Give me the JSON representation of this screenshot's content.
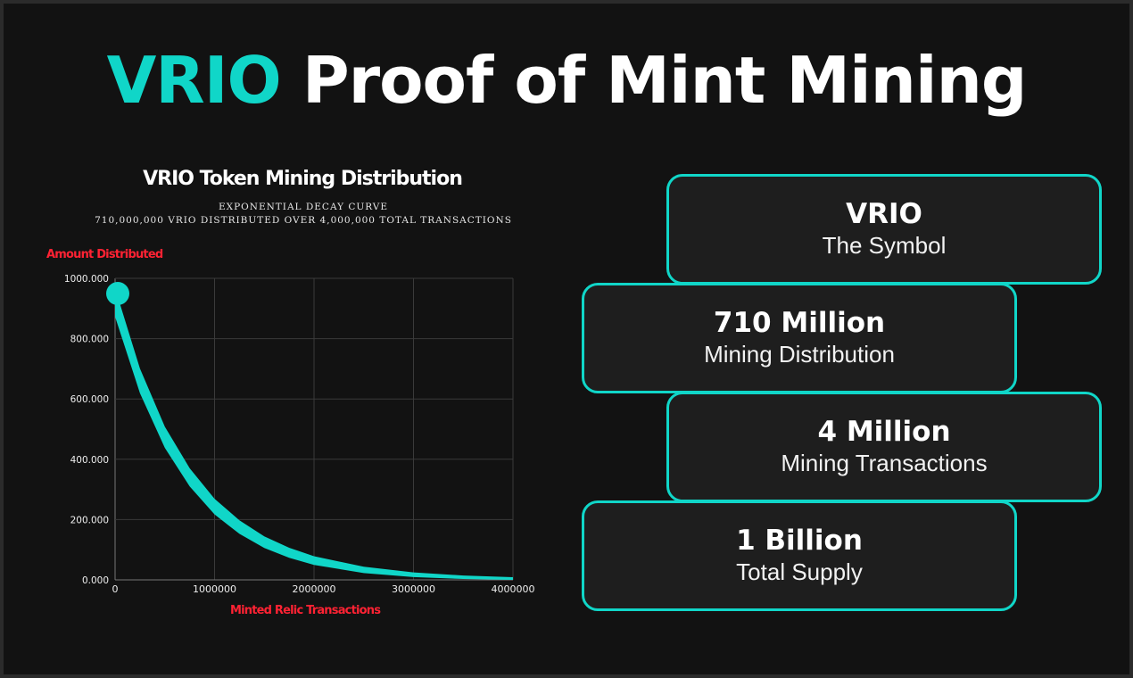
{
  "header": {
    "title_accent": "VRIO",
    "title_rest": " Proof of Mint Mining"
  },
  "chart_data": {
    "type": "area",
    "title": "VRIO Token Mining Distribution",
    "subtitle": [
      "EXPONENTIAL DECAY CURVE",
      "710,000,000 VRIO DISTRIBUTED OVER 4,000,000 TOTAL TRANSACTIONS"
    ],
    "xlabel": "Minted Relic Transactions",
    "ylabel": "Amount Distributed",
    "xlim": [
      0,
      4000000
    ],
    "ylim": [
      0,
      1000000
    ],
    "xticks": [
      "0",
      "1000000",
      "2000000",
      "3000000",
      "4000000"
    ],
    "yticks": [
      "0.000",
      "200.000",
      "400.000",
      "600.000",
      "800.000",
      "1000.000"
    ],
    "grid": true,
    "color": "#10d6c8",
    "series": [
      {
        "name": "Amount Distributed",
        "x": [
          0,
          250000,
          500000,
          750000,
          1000000,
          1250000,
          1500000,
          1750000,
          2000000,
          2500000,
          3000000,
          3500000,
          4000000
        ],
        "y": [
          920000,
          660000,
          473000,
          340000,
          243000,
          175000,
          125000,
          90000,
          64000,
          33000,
          17000,
          8700,
          4500
        ]
      }
    ]
  },
  "cards": [
    {
      "value": "VRIO",
      "label": "The Symbol"
    },
    {
      "value": "710 Million",
      "label": "Mining Distribution"
    },
    {
      "value": "4 Million",
      "label": "Mining Transactions"
    },
    {
      "value": "1 Billion",
      "label": "Total Supply"
    }
  ]
}
